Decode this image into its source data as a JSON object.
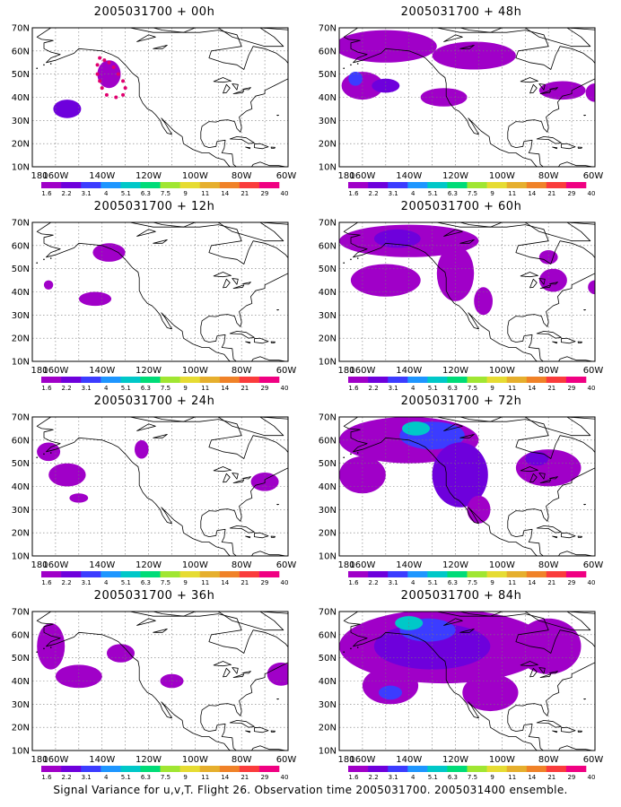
{
  "figure": {
    "caption": "Signal Variance for u,v,T. Flight 26. Observation time 2005031700. 2005031400 ensemble."
  },
  "axes": {
    "lon_labels": [
      "180",
      "160W",
      "140W",
      "120W",
      "100W",
      "80W",
      "60W"
    ],
    "lat_labels": [
      "10N",
      "20N",
      "30N",
      "40N",
      "50N",
      "60N",
      "70N"
    ],
    "lon_range": [
      -170,
      -60
    ],
    "lat_range": [
      10,
      70
    ],
    "grid": "dotted"
  },
  "colorbar": {
    "levels": [
      "1.6",
      "2.2",
      "3.1",
      "4",
      "5.1",
      "6.3",
      "7.5",
      "9",
      "11",
      "14",
      "21",
      "29",
      "40"
    ],
    "colors": [
      "#a000c8",
      "#6e00dc",
      "#3c3cff",
      "#1e96ff",
      "#00c8c8",
      "#00dc78",
      "#a0e632",
      "#e6dc32",
      "#e6af2d",
      "#f08228",
      "#fa3c3c",
      "#f00082"
    ]
  },
  "panels": [
    {
      "title": "2005031700 + 00h"
    },
    {
      "title": "2005031700 + 48h"
    },
    {
      "title": "2005031700 + 12h"
    },
    {
      "title": "2005031700 + 60h"
    },
    {
      "title": "2005031700 + 24h"
    },
    {
      "title": "2005031700 + 72h"
    },
    {
      "title": "2005031700 + 36h"
    },
    {
      "title": "2005031700 + 84h"
    }
  ],
  "map_data": {
    "projection": "cylindrical lon/lat",
    "contour_field": "signal variance",
    "panels": [
      {
        "blobs": [
          {
            "lon": -155,
            "lat": 35,
            "rx": 6,
            "ry": 4,
            "level": 1
          },
          {
            "lon": -137,
            "lat": 50,
            "rx": 5,
            "ry": 6,
            "level": 0
          }
        ],
        "markers": [
          [
            -141,
            57
          ],
          [
            -139,
            56
          ],
          [
            -137,
            55
          ],
          [
            -135,
            53
          ],
          [
            -133,
            50
          ],
          [
            -131,
            47
          ],
          [
            -130,
            44
          ],
          [
            -131,
            41
          ],
          [
            -134,
            40
          ],
          [
            -138,
            41
          ],
          [
            -140,
            44
          ],
          [
            -141,
            47
          ],
          [
            -142,
            50
          ],
          [
            -142,
            54
          ]
        ]
      },
      {
        "blobs": [
          {
            "lon": -150,
            "lat": 62,
            "rx": 22,
            "ry": 7,
            "level": 0
          },
          {
            "lon": -112,
            "lat": 58,
            "rx": 18,
            "ry": 6,
            "level": 0
          },
          {
            "lon": -160,
            "lat": 45,
            "rx": 9,
            "ry": 6,
            "level": 0
          },
          {
            "lon": -150,
            "lat": 45,
            "rx": 6,
            "ry": 3,
            "level": 1
          },
          {
            "lon": -163,
            "lat": 48,
            "rx": 3,
            "ry": 3,
            "level": 2
          },
          {
            "lon": -125,
            "lat": 40,
            "rx": 10,
            "ry": 4,
            "level": 0
          },
          {
            "lon": -74,
            "lat": 43,
            "rx": 10,
            "ry": 4,
            "level": 0
          },
          {
            "lon": -60,
            "lat": 42,
            "rx": 4,
            "ry": 4,
            "level": 0
          }
        ],
        "markers": []
      },
      {
        "blobs": [
          {
            "lon": -137,
            "lat": 57,
            "rx": 7,
            "ry": 4,
            "level": 0
          },
          {
            "lon": -143,
            "lat": 37,
            "rx": 7,
            "ry": 3,
            "level": 0
          },
          {
            "lon": -163,
            "lat": 43,
            "rx": 2,
            "ry": 2,
            "level": 0
          }
        ],
        "markers": []
      },
      {
        "blobs": [
          {
            "lon": -140,
            "lat": 62,
            "rx": 30,
            "ry": 7,
            "level": 0
          },
          {
            "lon": -150,
            "lat": 45,
            "rx": 15,
            "ry": 7,
            "level": 0
          },
          {
            "lon": -120,
            "lat": 48,
            "rx": 8,
            "ry": 12,
            "level": 0
          },
          {
            "lon": -145,
            "lat": 63,
            "rx": 10,
            "ry": 4,
            "level": 1
          },
          {
            "lon": -108,
            "lat": 36,
            "rx": 4,
            "ry": 6,
            "level": 0
          },
          {
            "lon": -78,
            "lat": 45,
            "rx": 6,
            "ry": 5,
            "level": 0
          },
          {
            "lon": -80,
            "lat": 55,
            "rx": 4,
            "ry": 3,
            "level": 0
          },
          {
            "lon": -60,
            "lat": 42,
            "rx": 3,
            "ry": 3,
            "level": 0
          }
        ],
        "markers": []
      },
      {
        "blobs": [
          {
            "lon": -163,
            "lat": 55,
            "rx": 5,
            "ry": 4,
            "level": 0
          },
          {
            "lon": -155,
            "lat": 45,
            "rx": 8,
            "ry": 5,
            "level": 0
          },
          {
            "lon": -150,
            "lat": 35,
            "rx": 4,
            "ry": 2,
            "level": 0
          },
          {
            "lon": -123,
            "lat": 56,
            "rx": 3,
            "ry": 4,
            "level": 0
          },
          {
            "lon": -70,
            "lat": 42,
            "rx": 6,
            "ry": 4,
            "level": 0
          }
        ],
        "markers": []
      },
      {
        "blobs": [
          {
            "lon": -140,
            "lat": 60,
            "rx": 30,
            "ry": 10,
            "level": 0
          },
          {
            "lon": -130,
            "lat": 62,
            "rx": 14,
            "ry": 6,
            "level": 2
          },
          {
            "lon": -137,
            "lat": 65,
            "rx": 6,
            "ry": 3,
            "level": 4
          },
          {
            "lon": -160,
            "lat": 45,
            "rx": 10,
            "ry": 8,
            "level": 0
          },
          {
            "lon": -118,
            "lat": 45,
            "rx": 12,
            "ry": 14,
            "level": 1
          },
          {
            "lon": -110,
            "lat": 30,
            "rx": 5,
            "ry": 6,
            "level": 0
          },
          {
            "lon": -80,
            "lat": 48,
            "rx": 14,
            "ry": 8,
            "level": 0
          },
          {
            "lon": -85,
            "lat": 52,
            "rx": 5,
            "ry": 3,
            "level": 1
          }
        ],
        "markers": []
      },
      {
        "blobs": [
          {
            "lon": -162,
            "lat": 55,
            "rx": 6,
            "ry": 10,
            "level": 0
          },
          {
            "lon": -150,
            "lat": 42,
            "rx": 10,
            "ry": 5,
            "level": 0
          },
          {
            "lon": -132,
            "lat": 52,
            "rx": 6,
            "ry": 4,
            "level": 0
          },
          {
            "lon": -110,
            "lat": 40,
            "rx": 5,
            "ry": 3,
            "level": 0
          },
          {
            "lon": -63,
            "lat": 43,
            "rx": 6,
            "ry": 5,
            "level": 0
          }
        ],
        "markers": []
      },
      {
        "blobs": [
          {
            "lon": -125,
            "lat": 55,
            "rx": 45,
            "ry": 16,
            "level": 0
          },
          {
            "lon": -130,
            "lat": 55,
            "rx": 25,
            "ry": 10,
            "level": 1
          },
          {
            "lon": -132,
            "lat": 62,
            "rx": 12,
            "ry": 5,
            "level": 2
          },
          {
            "lon": -140,
            "lat": 65,
            "rx": 6,
            "ry": 3,
            "level": 4
          },
          {
            "lon": -148,
            "lat": 38,
            "rx": 12,
            "ry": 8,
            "level": 0
          },
          {
            "lon": -148,
            "lat": 35,
            "rx": 5,
            "ry": 3,
            "level": 2
          },
          {
            "lon": -105,
            "lat": 35,
            "rx": 12,
            "ry": 8,
            "level": 0
          },
          {
            "lon": -80,
            "lat": 55,
            "rx": 14,
            "ry": 12,
            "level": 0
          }
        ],
        "markers": []
      }
    ]
  }
}
